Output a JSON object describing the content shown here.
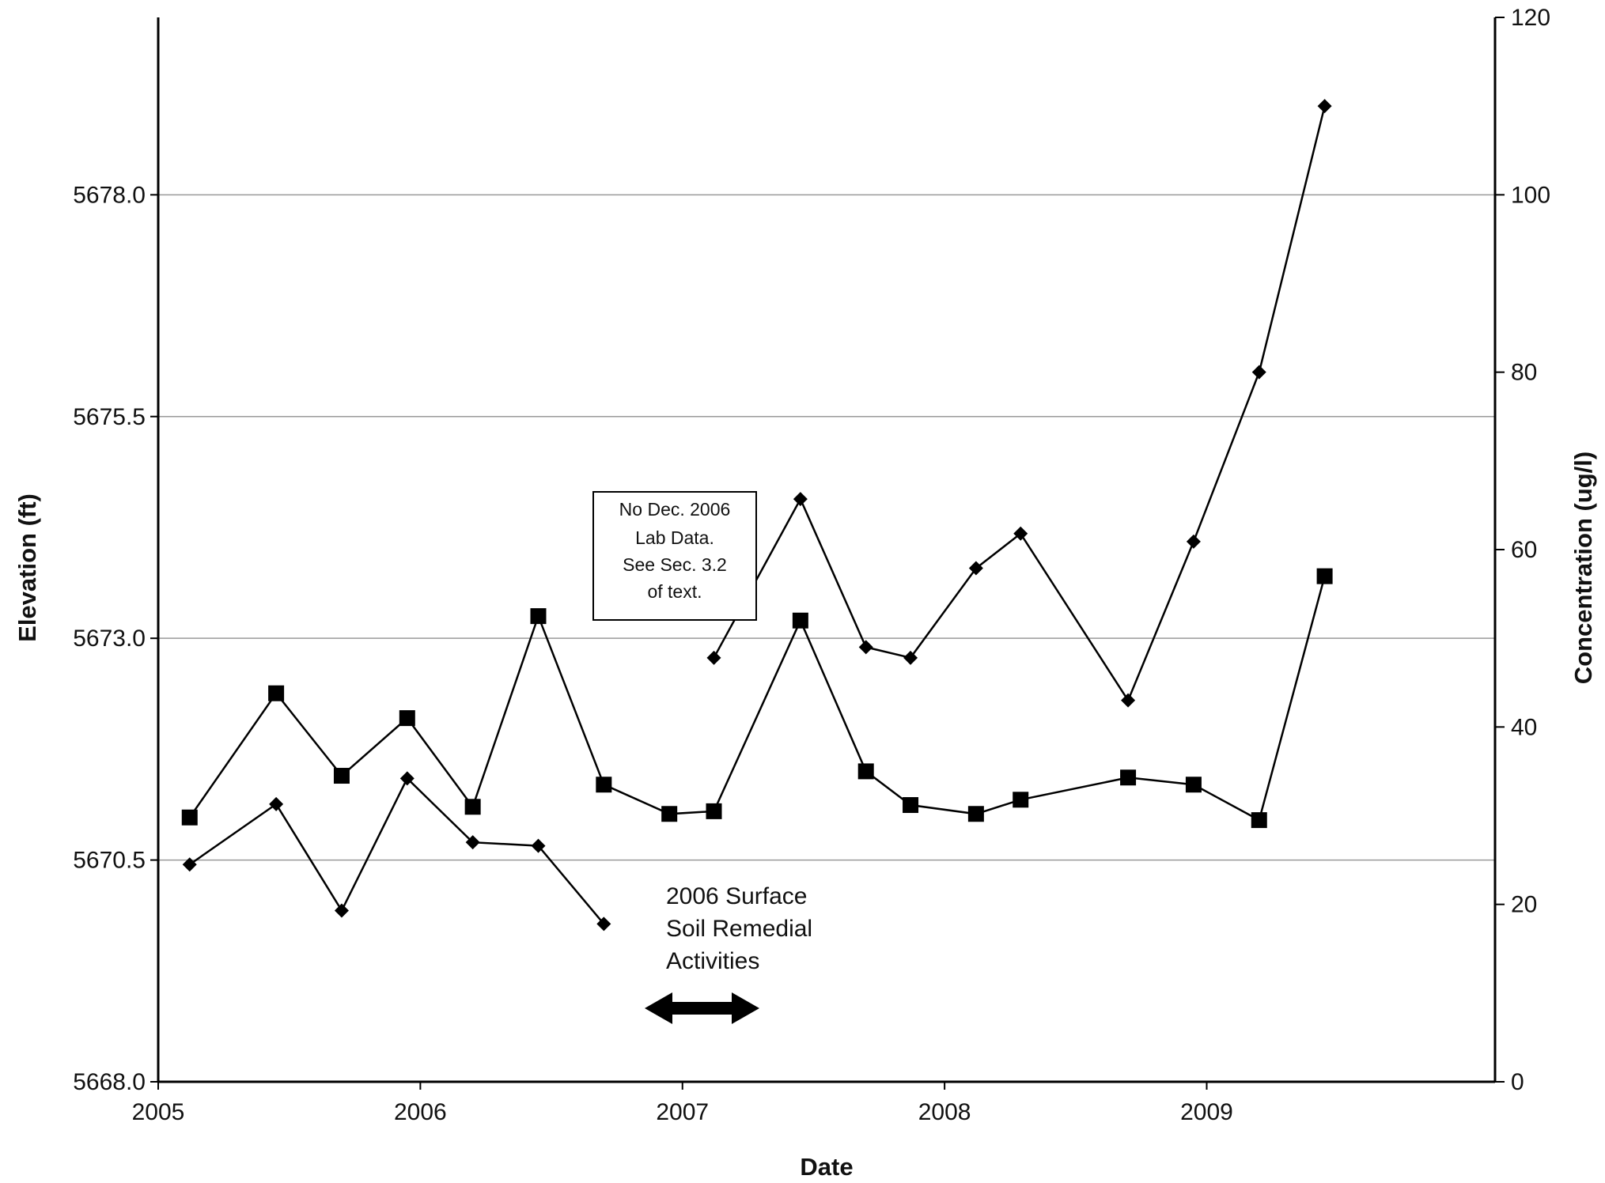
{
  "chart_data": {
    "type": "line",
    "title": "",
    "xlabel": "Date",
    "ylabel_left": "Elevation (ft)",
    "ylabel_right": "Concentration (ug/l)",
    "x_ticks": [
      "2005",
      "2006",
      "2007",
      "2008",
      "2009"
    ],
    "x_range": [
      2005.0,
      2010.1
    ],
    "y_left_ticks": [
      "5668.0",
      "5670.5",
      "5673.0",
      "5675.5",
      "5678.0"
    ],
    "y_left_range": [
      5668.0,
      5680.0
    ],
    "y_right_ticks": [
      "0",
      "20",
      "40",
      "60",
      "80",
      "100",
      "120"
    ],
    "y_right_range": [
      0,
      120
    ],
    "grid": "horizontal",
    "series": [
      {
        "axis": "left",
        "marker": "square",
        "segments": [
          [
            {
              "x": 2005.12,
              "y": 5670.98
            },
            {
              "x": 2005.45,
              "y": 5672.38
            },
            {
              "x": 2005.7,
              "y": 5671.45
            },
            {
              "x": 2005.95,
              "y": 5672.1
            },
            {
              "x": 2006.2,
              "y": 5671.1
            },
            {
              "x": 2006.45,
              "y": 5673.25
            },
            {
              "x": 2006.7,
              "y": 5671.35
            },
            {
              "x": 2006.95,
              "y": 5671.02
            },
            {
              "x": 2007.12,
              "y": 5671.05
            },
            {
              "x": 2007.45,
              "y": 5673.2
            },
            {
              "x": 2007.7,
              "y": 5671.5
            },
            {
              "x": 2007.87,
              "y": 5671.12
            },
            {
              "x": 2008.12,
              "y": 5671.02
            },
            {
              "x": 2008.29,
              "y": 5671.18
            },
            {
              "x": 2008.7,
              "y": 5671.43
            },
            {
              "x": 2008.95,
              "y": 5671.35
            },
            {
              "x": 2009.2,
              "y": 5670.95
            },
            {
              "x": 2009.45,
              "y": 5673.7
            }
          ]
        ]
      },
      {
        "axis": "right",
        "marker": "diamond",
        "segments": [
          [
            {
              "x": 2005.12,
              "y": 24.5
            },
            {
              "x": 2005.45,
              "y": 31.3
            },
            {
              "x": 2005.7,
              "y": 19.3
            },
            {
              "x": 2005.95,
              "y": 34.2
            },
            {
              "x": 2006.2,
              "y": 27.0
            },
            {
              "x": 2006.45,
              "y": 26.6
            },
            {
              "x": 2006.7,
              "y": 17.8
            }
          ],
          [
            {
              "x": 2007.12,
              "y": 47.8
            },
            {
              "x": 2007.45,
              "y": 65.7
            },
            {
              "x": 2007.7,
              "y": 49.0
            },
            {
              "x": 2007.87,
              "y": 47.8
            },
            {
              "x": 2008.12,
              "y": 57.9
            },
            {
              "x": 2008.29,
              "y": 61.8
            },
            {
              "x": 2008.7,
              "y": 43.0
            },
            {
              "x": 2008.95,
              "y": 60.9
            },
            {
              "x": 2009.2,
              "y": 80.0
            },
            {
              "x": 2009.45,
              "y": 110.0
            }
          ]
        ]
      }
    ],
    "annotations": [
      {
        "lines": [
          "No Dec. 2006",
          "Lab Data.",
          "See Sec. 3.2",
          "of text."
        ],
        "boxed": true
      },
      {
        "lines": [
          "2006 Surface",
          "Soil Remedial",
          "Activities"
        ],
        "boxed": false,
        "arrow": "double-horizontal"
      }
    ]
  }
}
